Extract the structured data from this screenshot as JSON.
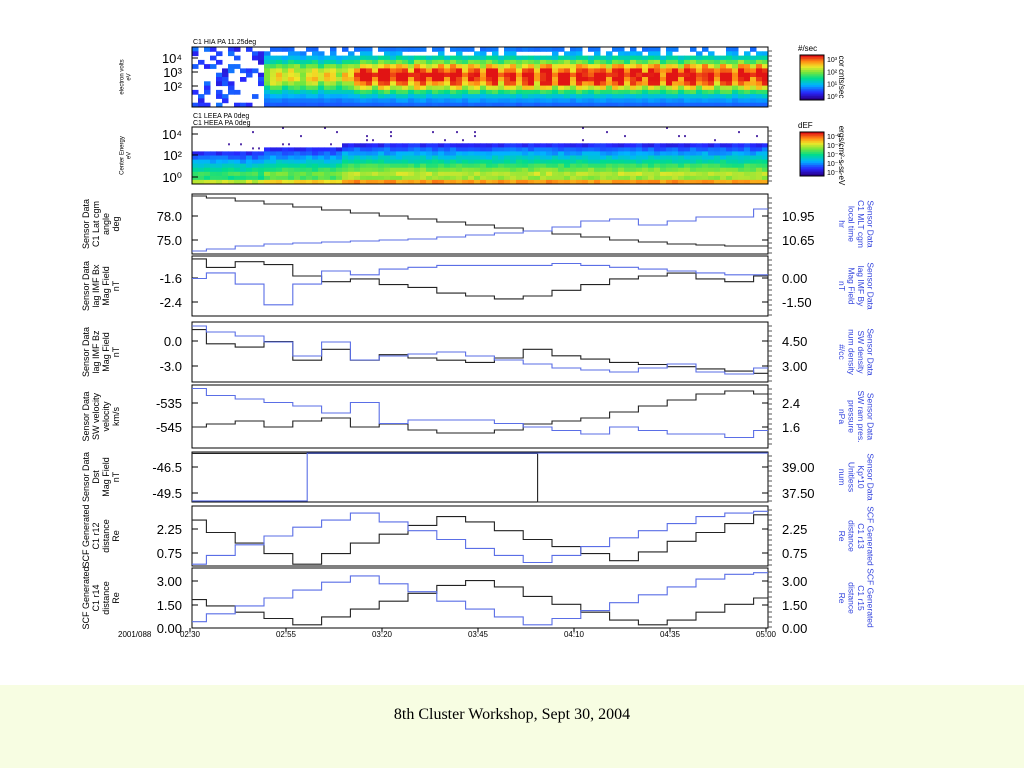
{
  "footer": "8th Cluster Workshop, Sept 30, 2004",
  "colors": {
    "black_trace": "#222222",
    "blue_trace": "#5a6ee6",
    "right_label": "#3344dd"
  },
  "chart_data": [
    {
      "type": "heatmap",
      "title": "C1 HIA PA 11.25deg",
      "ylabel": "electron volts\neV",
      "yticks": [
        "10⁴",
        "10³",
        "10²"
      ],
      "colorbar_title": "#/sec",
      "colorbar_ticks": [
        "10³",
        "10²",
        "10¹",
        "10⁰"
      ],
      "right_label": "cor cnts/sec"
    },
    {
      "type": "heatmap",
      "title": [
        "C1 LEEA PA 0deg",
        "C1 HEEA PA 0deg"
      ],
      "ylabel": "Center Energy\neV",
      "yticks": [
        "10⁴",
        "10²",
        "10⁰"
      ],
      "colorbar_title": "dEF",
      "colorbar_ticks": [
        "10⁻²",
        "10⁻³",
        "10⁻⁴",
        "10⁻⁵",
        "10⁻⁶"
      ],
      "right_label": "ergs/cm²-s-sr-eV"
    },
    {
      "type": "line",
      "left_label": "Sensor Data\nC1 Lat cgm\nangle\ndeg",
      "left_ticks": [
        "78.0",
        "75.0"
      ],
      "right_label": "Sensor Data\nC1 MLT cgm\nlocal time\nhr",
      "right_ticks": [
        "10.95",
        "10.65"
      ],
      "series": [
        {
          "axis": "left",
          "color": "black",
          "ylim": [
            73.8,
            79.8
          ],
          "values": [
            79.6,
            79.4,
            79.1,
            78.8,
            78.5,
            78.2,
            77.9,
            77.6,
            77.3,
            77.0,
            76.7,
            76.4,
            76.1,
            75.8,
            75.5,
            75.2,
            75.0,
            74.8,
            74.7,
            74.6,
            74.6
          ]
        },
        {
          "axis": "right",
          "color": "blue",
          "ylim": [
            10.55,
            11.15
          ],
          "values": [
            10.58,
            10.6,
            10.63,
            10.65,
            10.66,
            10.67,
            10.68,
            10.69,
            10.7,
            10.72,
            10.74,
            10.76,
            10.78,
            10.82,
            10.88,
            10.9,
            10.84,
            10.88,
            10.92,
            10.92,
            11.0
          ]
        }
      ]
    },
    {
      "type": "line",
      "left_label": "Sensor Data\nlag IMF Bx\nMag Field\nnT",
      "left_ticks": [
        "-1.6",
        "-2.4"
      ],
      "right_label": "Sensor Data\nlag IMF By\nMag Field\nnT",
      "right_ticks": [
        "0.00",
        "-1.50"
      ],
      "series": [
        {
          "axis": "left",
          "color": "black",
          "ylim": [
            -2.9,
            -0.8
          ],
          "values": [
            -0.9,
            -1.2,
            -1.0,
            -1.1,
            -1.5,
            -1.7,
            -1.6,
            -1.8,
            -1.9,
            -2.1,
            -2.2,
            -2.3,
            -2.2,
            -2.0,
            -1.8,
            -1.6,
            -1.5,
            -1.4,
            -1.6,
            -1.7,
            -1.5
          ]
        },
        {
          "axis": "right",
          "color": "blue",
          "ylim": [
            -2.2,
            1.0
          ],
          "values": [
            -0.2,
            0.1,
            -0.5,
            -1.6,
            -0.5,
            0.2,
            0.0,
            0.3,
            0.4,
            0.5,
            0.5,
            0.5,
            0.5,
            0.6,
            0.5,
            0.4,
            0.3,
            0.2,
            0.1,
            0.0,
            0.0
          ]
        }
      ]
    },
    {
      "type": "line",
      "left_label": "Sensor Data\nlag IMF Bz\nMag Field\nnT",
      "left_ticks": [
        "0.0",
        "-3.0"
      ],
      "right_label": "Sensor Data\nSW density\nnum density\n#/cc",
      "right_ticks": [
        "4.50",
        "3.00"
      ],
      "series": [
        {
          "axis": "left",
          "color": "black",
          "ylim": [
            -4.0,
            1.5
          ],
          "values": [
            0.8,
            -0.5,
            -0.8,
            -0.3,
            -2.0,
            -1.0,
            -2.0,
            -1.5,
            -1.8,
            -2.0,
            -2.2,
            -1.8,
            -1.0,
            -1.6,
            -1.9,
            -2.2,
            -2.4,
            -2.6,
            -2.8,
            -3.0,
            -3.2
          ]
        },
        {
          "axis": "right",
          "color": "blue",
          "ylim": [
            2.5,
            5.5
          ],
          "values": [
            5.3,
            5.0,
            4.8,
            4.5,
            3.8,
            4.5,
            3.6,
            3.8,
            3.9,
            4.0,
            3.8,
            3.6,
            3.4,
            3.2,
            3.1,
            3.0,
            3.2,
            3.4,
            3.0,
            2.9,
            3.2
          ]
        }
      ]
    },
    {
      "type": "line",
      "left_label": "Sensor Data\nSW velocity\nvelocity\nkm/s",
      "left_ticks": [
        "-535",
        "-545"
      ],
      "right_label": "Sensor Data\nSW ram pres.\npressure\nnPa",
      "right_ticks": [
        "2.4",
        "1.6"
      ],
      "series": [
        {
          "axis": "left",
          "color": "black",
          "ylim": [
            -550,
            -529
          ],
          "values": [
            -543,
            -542,
            -541,
            -543,
            -541,
            -540,
            -543,
            -542,
            -544,
            -545,
            -545,
            -544,
            -542,
            -541,
            -540,
            -538,
            -536,
            -534,
            -532,
            -531,
            -532
          ]
        },
        {
          "axis": "right",
          "color": "blue",
          "ylim": [
            1.2,
            3.0
          ],
          "values": [
            2.9,
            2.7,
            2.6,
            2.5,
            2.4,
            2.2,
            2.5,
            1.9,
            2.0,
            2.0,
            2.0,
            1.9,
            1.8,
            1.7,
            1.6,
            1.8,
            1.7,
            1.6,
            1.6,
            1.5,
            1.7
          ]
        }
      ]
    },
    {
      "type": "line",
      "left_label": "Sensor Data\nDst\nMag Field\nnT",
      "left_ticks": [
        "-46.5",
        "-49.5"
      ],
      "right_label": "Sensor Data\nKp*10\nUnitless\nnum",
      "right_ticks": [
        "39.00",
        "37.50"
      ],
      "series": [
        {
          "axis": "left",
          "color": "black",
          "ylim": [
            -51,
            -44
          ],
          "steps": [
            [
              0,
              -44.2
            ],
            [
              0.6,
              -44.2
            ],
            [
              0.6,
              -51.0
            ],
            [
              1.0,
              -51.0
            ]
          ]
        },
        {
          "axis": "right",
          "color": "blue",
          "ylim": [
            37.2,
            39.4
          ],
          "steps": [
            [
              0,
              37.25
            ],
            [
              0.2,
              37.25
            ],
            [
              0.2,
              39.35
            ],
            [
              1.0,
              39.35
            ]
          ]
        }
      ]
    },
    {
      "type": "line",
      "left_label": "SCF Generated\nC1 r12\ndistance\nRe",
      "left_ticks": [
        "2.25",
        "0.75"
      ],
      "right_label": "SCF Generated\nC1 r13\ndistance\nRe",
      "right_ticks": [
        "2.25",
        "0.75"
      ],
      "series": [
        {
          "axis": "left",
          "color": "black",
          "ylim": [
            0.0,
            3.4
          ],
          "values": [
            2.6,
            1.9,
            1.3,
            0.7,
            0.1,
            0.7,
            1.3,
            1.8,
            2.3,
            2.8,
            2.5,
            2.0,
            1.5,
            1.1,
            0.7,
            0.3,
            0.8,
            1.4,
            1.9,
            2.4,
            2.9
          ]
        },
        {
          "axis": "right",
          "color": "blue",
          "ylim": [
            0.0,
            3.4
          ],
          "values": [
            0.1,
            0.6,
            1.2,
            1.7,
            2.2,
            2.6,
            3.0,
            2.5,
            2.0,
            1.5,
            1.0,
            0.6,
            0.2,
            0.6,
            1.1,
            1.6,
            2.0,
            2.4,
            2.8,
            3.0,
            3.1
          ]
        }
      ]
    },
    {
      "type": "line",
      "left_label": "SCF Generated\nC1 r14\ndistance\nRe",
      "left_ticks": [
        "3.00",
        "1.50",
        "0.00"
      ],
      "right_label": "SCF Generated\nC1 r15\ndistance\nRe",
      "right_ticks": [
        "3.00",
        "1.50",
        "0.00"
      ],
      "series": [
        {
          "axis": "left",
          "color": "black",
          "ylim": [
            -0.2,
            3.6
          ],
          "values": [
            1.6,
            1.2,
            0.8,
            0.4,
            0.0,
            0.5,
            1.0,
            1.5,
            2.0,
            2.5,
            2.8,
            2.4,
            1.8,
            1.3,
            0.8,
            0.3,
            0.0,
            0.3,
            0.8,
            1.3,
            1.7
          ]
        },
        {
          "axis": "right",
          "color": "blue",
          "ylim": [
            -0.2,
            3.6
          ],
          "values": [
            0.2,
            0.7,
            1.2,
            1.7,
            2.2,
            2.7,
            3.1,
            2.6,
            2.1,
            1.5,
            1.0,
            0.5,
            0.0,
            0.4,
            0.9,
            1.4,
            1.9,
            2.4,
            2.9,
            3.2,
            3.3
          ]
        }
      ]
    },
    {
      "type": "axis",
      "date_label": "2001/088",
      "time_ticks": [
        "02:30",
        "02:55",
        "03:20",
        "03:45",
        "04:10",
        "04:35",
        "05:00"
      ]
    }
  ]
}
